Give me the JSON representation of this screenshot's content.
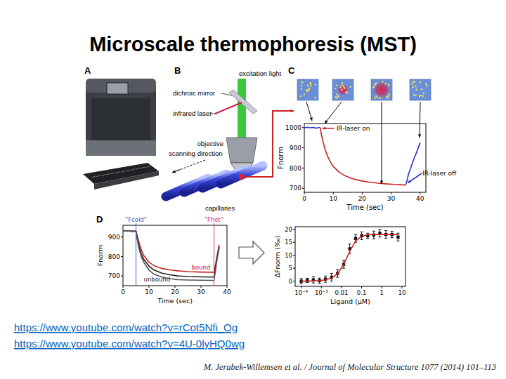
{
  "title": "Microscale thermophoresis (MST)",
  "panel_labels": [
    "A",
    "B",
    "C",
    "D"
  ],
  "diagram": {
    "labels": [
      "excitation light",
      "dichroic mirror",
      "infrared laser",
      "objective",
      "scanning direction",
      "capillaries"
    ]
  },
  "links": [
    "https://www.youtube.com/watch?v=rCot5Nfi_Og",
    "https://www.youtube.com/watch?v=4U-0lyHQ0wg"
  ],
  "citation": "M. Jerabek-Willemsen et al. / Journal of Molecular Structure 1077 (2014) 101–113",
  "chart_data": [
    {
      "type": "line",
      "y_label": "Fnorm",
      "x_label": "Time (sec)",
      "x": [
        0,
        1,
        2,
        3,
        4,
        5,
        5.5,
        6,
        7,
        8,
        9,
        10,
        12,
        14,
        16,
        18,
        20,
        22,
        25,
        28,
        31,
        34,
        35,
        35.5,
        36,
        37,
        38,
        39,
        40
      ],
      "series": [
        {
          "color": "#2233cc",
          "values": [
            998,
            1002,
            999,
            1001,
            997,
            1000,
            1000,
            null,
            null,
            null,
            null,
            null,
            null,
            null,
            null,
            null,
            null,
            null,
            null,
            null,
            null,
            null,
            null,
            null,
            null,
            null,
            null,
            null,
            null
          ]
        },
        {
          "color": "#cc2222",
          "values": [
            null,
            null,
            null,
            null,
            null,
            null,
            1000,
            960,
            900,
            860,
            830,
            808,
            780,
            762,
            750,
            742,
            736,
            731,
            726,
            722,
            719,
            717,
            716,
            null,
            null,
            null,
            null,
            null,
            null
          ]
        },
        {
          "color": "#2233cc",
          "values": [
            null,
            null,
            null,
            null,
            null,
            null,
            null,
            null,
            null,
            null,
            null,
            null,
            null,
            null,
            null,
            null,
            null,
            null,
            null,
            null,
            null,
            null,
            716,
            740,
            770,
            810,
            850,
            885,
            925
          ]
        }
      ],
      "xlim": [
        0,
        42
      ],
      "ylim": [
        680,
        1020
      ],
      "xticks": [
        0,
        10,
        20,
        30,
        40
      ],
      "yticks": [
        700,
        800,
        900,
        1000
      ],
      "grid": false,
      "annotations": [
        {
          "text": "IR-laser on",
          "x": 5.5,
          "y": 1000,
          "color": "#cc2222"
        },
        {
          "text": "IR-laser off",
          "x": 35,
          "y": 716,
          "color": "#2233cc"
        }
      ]
    },
    {
      "type": "line",
      "y_label": "Fnorm",
      "x_label": "Time (sec)",
      "x": [
        0,
        2,
        4,
        5,
        6,
        7,
        8,
        10,
        12,
        15,
        18,
        21,
        25,
        30,
        34,
        35,
        35.5,
        36,
        37
      ],
      "series": [
        {
          "name": "bound",
          "color": "#cc2222",
          "values": [
            930,
            931,
            929,
            930,
            880,
            835,
            805,
            770,
            752,
            738,
            731,
            726,
            722,
            720,
            719,
            719,
            750,
            790,
            860
          ]
        },
        {
          "name": "unbound",
          "color": "#222222",
          "values": [
            930,
            931,
            929,
            930,
            860,
            815,
            785,
            750,
            730,
            714,
            706,
            700,
            697,
            695,
            694,
            694,
            730,
            780,
            850
          ]
        },
        {
          "color": "#555555",
          "values": [
            930,
            931,
            929,
            930,
            850,
            800,
            770,
            730,
            708,
            694,
            686,
            681,
            679,
            678,
            677,
            677,
            720,
            770,
            845
          ]
        }
      ],
      "xlim": [
        0,
        40
      ],
      "ylim": [
        650,
        960
      ],
      "xticks": [
        0,
        10,
        20,
        30,
        40
      ],
      "yticks": [
        700,
        800,
        900
      ],
      "grid": false,
      "annotations": [
        {
          "text": "\"Fcold\"",
          "x": 5,
          "color": "#3355cc"
        },
        {
          "text": "\"Fhot\"",
          "x": 35,
          "color": "#dd3377"
        }
      ]
    },
    {
      "type": "scatter",
      "log": "x",
      "x_label": "Ligand (µM)",
      "y_label": "ΔFnorm (‰)",
      "x": [
        0.0001,
        0.0002,
        0.0004,
        0.0008,
        0.0016,
        0.0032,
        0.0064,
        0.0128,
        0.0256,
        0.05,
        0.1,
        0.2,
        0.4,
        0.8,
        1.6,
        3.2,
        6.4
      ],
      "series": [
        {
          "type": "scatter",
          "marker": "square",
          "color": "#111111",
          "values": [
            0,
            0.3,
            0.5,
            0.2,
            0.8,
            1.5,
            3,
            6.5,
            12.5,
            16.5,
            17.5,
            17.5,
            17.8,
            18.5,
            18,
            18,
            17
          ],
          "errors": [
            1,
            0.8,
            1.2,
            1,
            1.2,
            1.5,
            1.5,
            1.5,
            1.8,
            1.5,
            1.5,
            1,
            1.5,
            1.5,
            1.5,
            1.2,
            1.5
          ]
        },
        {
          "type": "line",
          "color": "#cc2222",
          "values": [
            0,
            0,
            0.1,
            0.2,
            0.5,
            1.2,
            2.8,
            6.5,
            11.5,
            15.5,
            17.3,
            17.9,
            18,
            18,
            18,
            18,
            18
          ]
        }
      ],
      "xlim": [
        5e-05,
        15
      ],
      "ylim": [
        -2,
        21
      ],
      "xticks": [
        {
          "value": 0.0001,
          "label": "10⁻⁴"
        },
        {
          "value": 0.001,
          "label": "10⁻³"
        },
        0.01,
        0.1,
        1,
        10
      ],
      "yticks": [
        0,
        5,
        10,
        15,
        20
      ],
      "grid": false
    }
  ]
}
